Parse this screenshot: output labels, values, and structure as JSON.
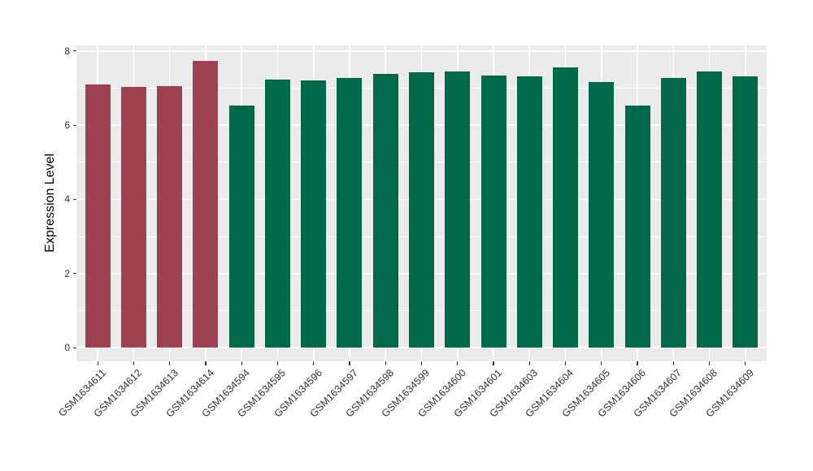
{
  "chart_data": {
    "type": "bar",
    "title": "",
    "xlabel": "",
    "ylabel": "Expression Level",
    "ylim": [
      0,
      8
    ],
    "panel_value_range": [
      -0.37,
      8.15
    ],
    "yticks_major": [
      0,
      2,
      4,
      6,
      8
    ],
    "yticks_minor": [
      1,
      3,
      5,
      7
    ],
    "grid": true,
    "legend_position": "none",
    "categories": [
      "GSM1634611",
      "GSM1634612",
      "GSM1634613",
      "GSM1634614",
      "GSM1634594",
      "GSM1634595",
      "GSM1634596",
      "GSM1634597",
      "GSM1634598",
      "GSM1634599",
      "GSM1634600",
      "GSM1634601",
      "GSM1634603",
      "GSM1634604",
      "GSM1634605",
      "GSM1634606",
      "GSM1634607",
      "GSM1634608",
      "GSM1634609"
    ],
    "values": [
      7.1,
      7.04,
      7.05,
      7.74,
      6.53,
      7.22,
      7.2,
      7.28,
      7.38,
      7.42,
      7.46,
      7.33,
      7.31,
      7.55,
      7.17,
      6.53,
      7.27,
      7.46,
      7.31
    ],
    "bar_colors": [
      "#9E4252",
      "#9E4252",
      "#9E4252",
      "#9E4252",
      "#00694A",
      "#00694A",
      "#00694A",
      "#00694A",
      "#00694A",
      "#00694A",
      "#00694A",
      "#00694A",
      "#00694A",
      "#00694A",
      "#00694A",
      "#00694A",
      "#00694A",
      "#00694A",
      "#00694A"
    ],
    "colors": {
      "group_a": "#9E4252",
      "group_b": "#00694A",
      "panel_background": "#EBEBEB",
      "gridline": "#FFFFFF",
      "axis_text": "#333333"
    }
  }
}
